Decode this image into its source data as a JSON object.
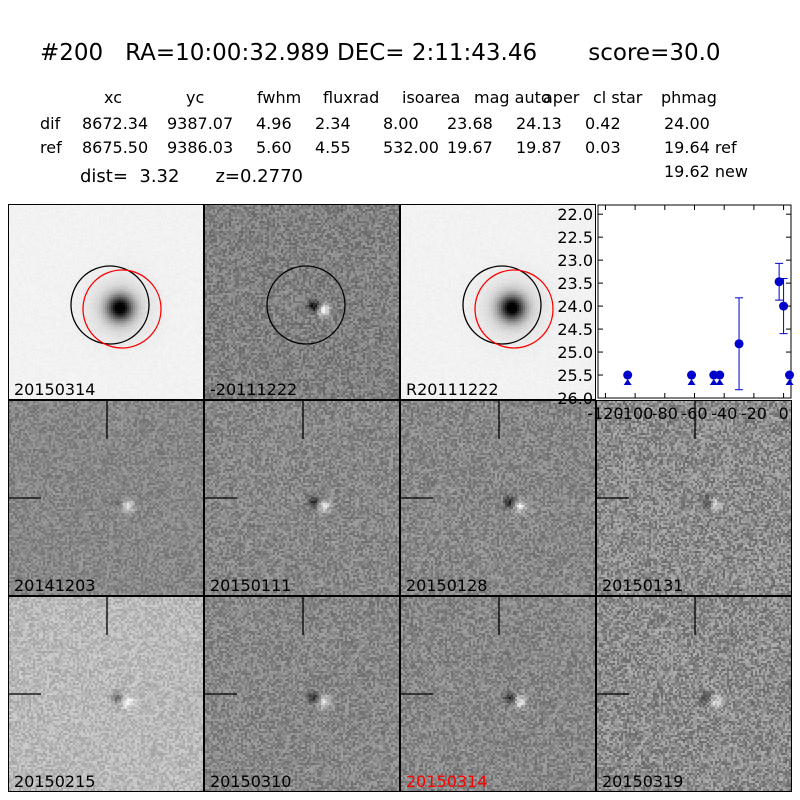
{
  "header": {
    "title": "#200   RA=10:00:32.989 DEC= 2:11:43.46       score=30.0",
    "columns": [
      "xc",
      "yc",
      "fwhm",
      "fluxrad",
      "isoarea",
      "mag auto",
      "aper",
      "cl star",
      "phmag"
    ],
    "rows": [
      {
        "label": "dif",
        "values": [
          "8672.34",
          "9387.07",
          "4.96",
          "2.34",
          "8.00",
          "23.68",
          "24.13",
          "0.42",
          "24.00"
        ]
      },
      {
        "label": "ref",
        "values": [
          "8675.50",
          "9386.03",
          "5.60",
          "4.55",
          "532.00",
          "19.67",
          "19.87",
          "0.03",
          "19.64 ref"
        ]
      }
    ],
    "phmag_new": "19.62 new",
    "dist": "dist=  3.32",
    "z": "z=0.2770"
  },
  "stamps": [
    {
      "label": "20150314",
      "type": "galaxy",
      "label_color": "#000000"
    },
    {
      "label": "-20111222",
      "type": "diff-circle",
      "label_color": "#000000"
    },
    {
      "label": "R20111222",
      "type": "galaxy",
      "label_color": "#000000"
    },
    {
      "label": "20141203",
      "type": "diff-faint",
      "label_color": "#000000"
    },
    {
      "label": "20150111",
      "type": "diff",
      "label_color": "#000000"
    },
    {
      "label": "20150128",
      "type": "diff",
      "label_color": "#000000"
    },
    {
      "label": "20150131",
      "type": "diff-noisy",
      "label_color": "#000000"
    },
    {
      "label": "20150215",
      "type": "diff-light",
      "label_color": "#000000"
    },
    {
      "label": "20150310",
      "type": "diff",
      "label_color": "#000000"
    },
    {
      "label": "20150314",
      "type": "diff",
      "label_color": "#ff0000"
    },
    {
      "label": "20150319",
      "type": "diff-noisy",
      "label_color": "#000000"
    }
  ],
  "chart_data": {
    "type": "scatter",
    "title": "",
    "xlabel": "",
    "ylabel": "",
    "xlim": [
      -125,
      5
    ],
    "ylim": [
      26.0,
      21.8
    ],
    "y_inverted": true,
    "xticks": [
      "-120",
      "-100",
      "-80",
      "-60",
      "-40",
      "-20",
      "0"
    ],
    "yticks": [
      "22.0",
      "22.5",
      "23.0",
      "23.5",
      "24.0",
      "24.5",
      "25.0",
      "25.5",
      "26.0"
    ],
    "color": "#0000cc",
    "points": [
      {
        "x": -105,
        "y": 25.5,
        "err": 0,
        "limit": true
      },
      {
        "x": -62,
        "y": 25.5,
        "err": 0,
        "limit": true
      },
      {
        "x": -47,
        "y": 25.5,
        "err": 0,
        "limit": true
      },
      {
        "x": -43,
        "y": 25.5,
        "err": 0,
        "limit": true
      },
      {
        "x": -30,
        "y": 24.82,
        "err": 1.0,
        "limit": false
      },
      {
        "x": -3,
        "y": 23.47,
        "err": 0.4,
        "limit": false
      },
      {
        "x": 0,
        "y": 24.0,
        "err": 0.6,
        "limit": false
      },
      {
        "x": 4,
        "y": 25.5,
        "err": 0,
        "limit": true
      }
    ]
  }
}
